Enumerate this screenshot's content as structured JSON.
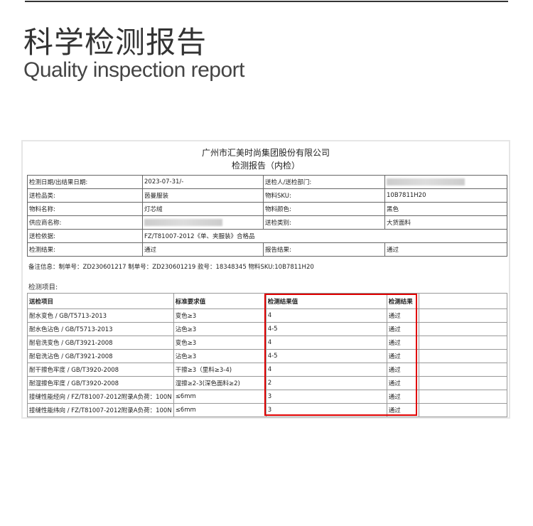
{
  "header": {
    "title_cn": "科学检测报告",
    "title_en": "Quality inspection report"
  },
  "report": {
    "company": "广州市汇美时尚集团股份有限公司",
    "subtitle": "检测报告（内检）",
    "info_rows": [
      [
        "检测日期/出结果日期:",
        "2023-07-31/-",
        "送检人/送检部门:",
        ""
      ],
      [
        "送检品类:",
        "茵曼服装",
        "物料SKU:",
        "10B7811H20"
      ],
      [
        "物料名称:",
        "灯芯绒",
        "物料颜色:",
        "黑色"
      ],
      [
        "供应商名称:",
        "",
        "送检类别:",
        "大货面料"
      ],
      [
        "送检依据:",
        "FZ/T81007-2012《单、夹服装》合格品"
      ],
      [
        "检测结果:",
        "通过",
        "报告结果:",
        "通过"
      ]
    ],
    "note": "备注信息：制单号：ZD230601217 制单号：ZD230601219 款号：18348345 物料SKU:10B7811H20",
    "items_label": "检测项目:",
    "items_header": [
      "送检项目",
      "标准要求值",
      "检测结果值",
      "检测结果"
    ],
    "items": [
      [
        "耐水变色 / GB/T5713-2013",
        "变色≥3",
        "4",
        "通过"
      ],
      [
        "耐水色沾色 / GB/T5713-2013",
        "沾色≥3",
        "4-5",
        "通过"
      ],
      [
        "耐皂洗变色 / GB/T3921-2008",
        "变色≥3",
        "4",
        "通过"
      ],
      [
        "耐皂洗沾色 / GB/T3921-2008",
        "沾色≥3",
        "4-5",
        "通过"
      ],
      [
        "耐干擦色牢度 / GB/T3920-2008",
        "干擦≥3（里料≥3-4)",
        "4",
        "通过"
      ],
      [
        "耐湿擦色牢度 / GB/T3920-2008",
        "湿擦≥2-3(深色面料≥2)",
        "2",
        "通过"
      ],
      [
        "接缝性能经向 / FZ/T81007-2012附录A负荷：100N",
        "≤6mm",
        "3",
        "通过"
      ],
      [
        "接缝性能纬向 / FZ/T81007-2012附录A负荷：100N",
        "≤6mm",
        "3",
        "通过"
      ]
    ],
    "highlight_color": "#e00000"
  }
}
